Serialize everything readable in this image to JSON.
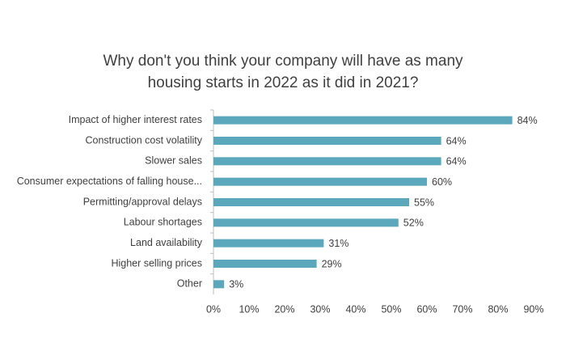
{
  "chart_data": {
    "type": "bar",
    "orientation": "horizontal",
    "title": [
      "Why don't you think your company will have as many",
      "housing starts in 2022 as it did in 2021?"
    ],
    "categories": [
      "Impact of higher interest rates",
      "Construction cost volatility",
      "Slower sales",
      "Consumer expectations of falling house...",
      "Permitting/approval delays",
      "Labour shortages",
      "Land availability",
      "Higher selling prices",
      "Other"
    ],
    "values": [
      84,
      64,
      64,
      60,
      55,
      52,
      31,
      29,
      3
    ],
    "value_labels": [
      "84%",
      "64%",
      "64%",
      "60%",
      "55%",
      "52%",
      "31%",
      "29%",
      "3%"
    ],
    "color": "#5ba8bd",
    "xlim": [
      0,
      90
    ],
    "xticks": [
      {
        "value": 0,
        "label": "0%"
      },
      {
        "value": 10,
        "label": "10%"
      },
      {
        "value": 20,
        "label": "20%"
      },
      {
        "value": 30,
        "label": "30%"
      },
      {
        "value": 40,
        "label": "40%"
      },
      {
        "value": 50,
        "label": "50%"
      },
      {
        "value": 60,
        "label": "60%"
      },
      {
        "value": 70,
        "label": "70%"
      },
      {
        "value": 80,
        "label": "80%"
      },
      {
        "value": 90,
        "label": "90%"
      }
    ],
    "grid": false
  }
}
